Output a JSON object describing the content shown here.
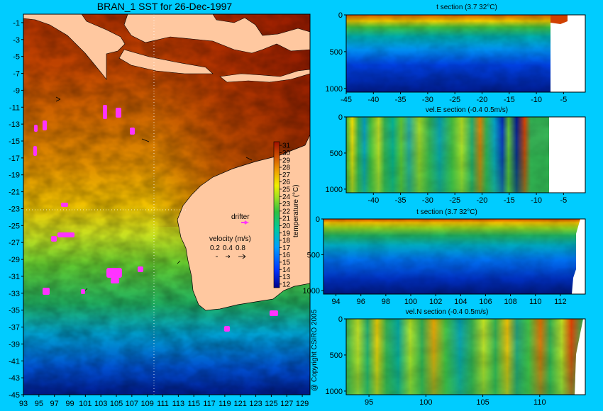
{
  "title": "BRAN_1 SST for 26-Dec-1997",
  "copyright": "@ Copyright CSIRO 2005",
  "colors": {
    "background": "#00ccff",
    "land": "#ffc8a0",
    "drifter": "#ff33ff"
  },
  "chart_data": [
    {
      "type": "heatmap",
      "name": "sst-map",
      "title": "BRAN_1 SST for 26-Dec-1997",
      "x_ticks": [
        "93",
        "95",
        "97",
        "99",
        "101",
        "103",
        "105",
        "107",
        "109",
        "111",
        "113",
        "115",
        "117",
        "119",
        "121",
        "123",
        "125",
        "127",
        "129"
      ],
      "y_ticks": [
        "-1",
        "-3",
        "-5",
        "-7",
        "-9",
        "-11",
        "-13",
        "-15",
        "-17",
        "-19",
        "-21",
        "-23",
        "-25",
        "-27",
        "-29",
        "-31",
        "-33",
        "-35",
        "-37",
        "-39",
        "-41",
        "-43",
        "-45"
      ],
      "xlim": [
        93,
        130
      ],
      "ylim": [
        -45,
        0
      ],
      "colorbar": {
        "label": "temperature (°C)",
        "ticks": [
          "31",
          "30",
          "29",
          "28",
          "27",
          "26",
          "25",
          "24",
          "23",
          "22",
          "21",
          "20",
          "19",
          "18",
          "17",
          "16",
          "15",
          "14",
          "13",
          "12"
        ],
        "range": [
          11.5,
          31.5
        ]
      },
      "legend": {
        "drifter_label": "drifter",
        "velocity_label": "velocity (m/s)",
        "velocity_values": [
          "0.2",
          "0.4",
          "0.8"
        ]
      }
    },
    {
      "type": "heatmap",
      "name": "t-section-lat",
      "title": "t section (3.7       32°C)",
      "x_ticks": [
        "-45",
        "-40",
        "-35",
        "-30",
        "-25",
        "-20",
        "-15",
        "-10",
        "-5"
      ],
      "y_ticks": [
        "0",
        "500",
        "1000"
      ],
      "xlim": [
        -45,
        -1
      ],
      "ylim": [
        1050,
        0
      ]
    },
    {
      "type": "heatmap",
      "name": "velE-section-lat",
      "title": "vel.E section (-0.4       0.5m/s)",
      "x_ticks": [
        "-40",
        "-35",
        "-30",
        "-25",
        "-20",
        "-15",
        "-10",
        "-5"
      ],
      "y_ticks": [
        "0",
        "500",
        "1000"
      ],
      "xlim": [
        -45,
        -1
      ],
      "ylim": [
        1050,
        0
      ]
    },
    {
      "type": "heatmap",
      "name": "t-section-lon",
      "title": "t section (3.7       32°C)",
      "x_ticks": [
        "94",
        "96",
        "98",
        "100",
        "102",
        "104",
        "106",
        "108",
        "110",
        "112"
      ],
      "y_ticks": [
        "0",
        "500",
        "1000"
      ],
      "xlim": [
        93,
        114
      ],
      "ylim": [
        1050,
        0
      ]
    },
    {
      "type": "heatmap",
      "name": "velN-section-lon",
      "title": "vel.N section (-0.4       0.5m/s)",
      "x_ticks": [
        "95",
        "100",
        "105",
        "110"
      ],
      "y_ticks": [
        "0",
        "500",
        "1000"
      ],
      "xlim": [
        93,
        114
      ],
      "ylim": [
        1050,
        0
      ]
    }
  ]
}
